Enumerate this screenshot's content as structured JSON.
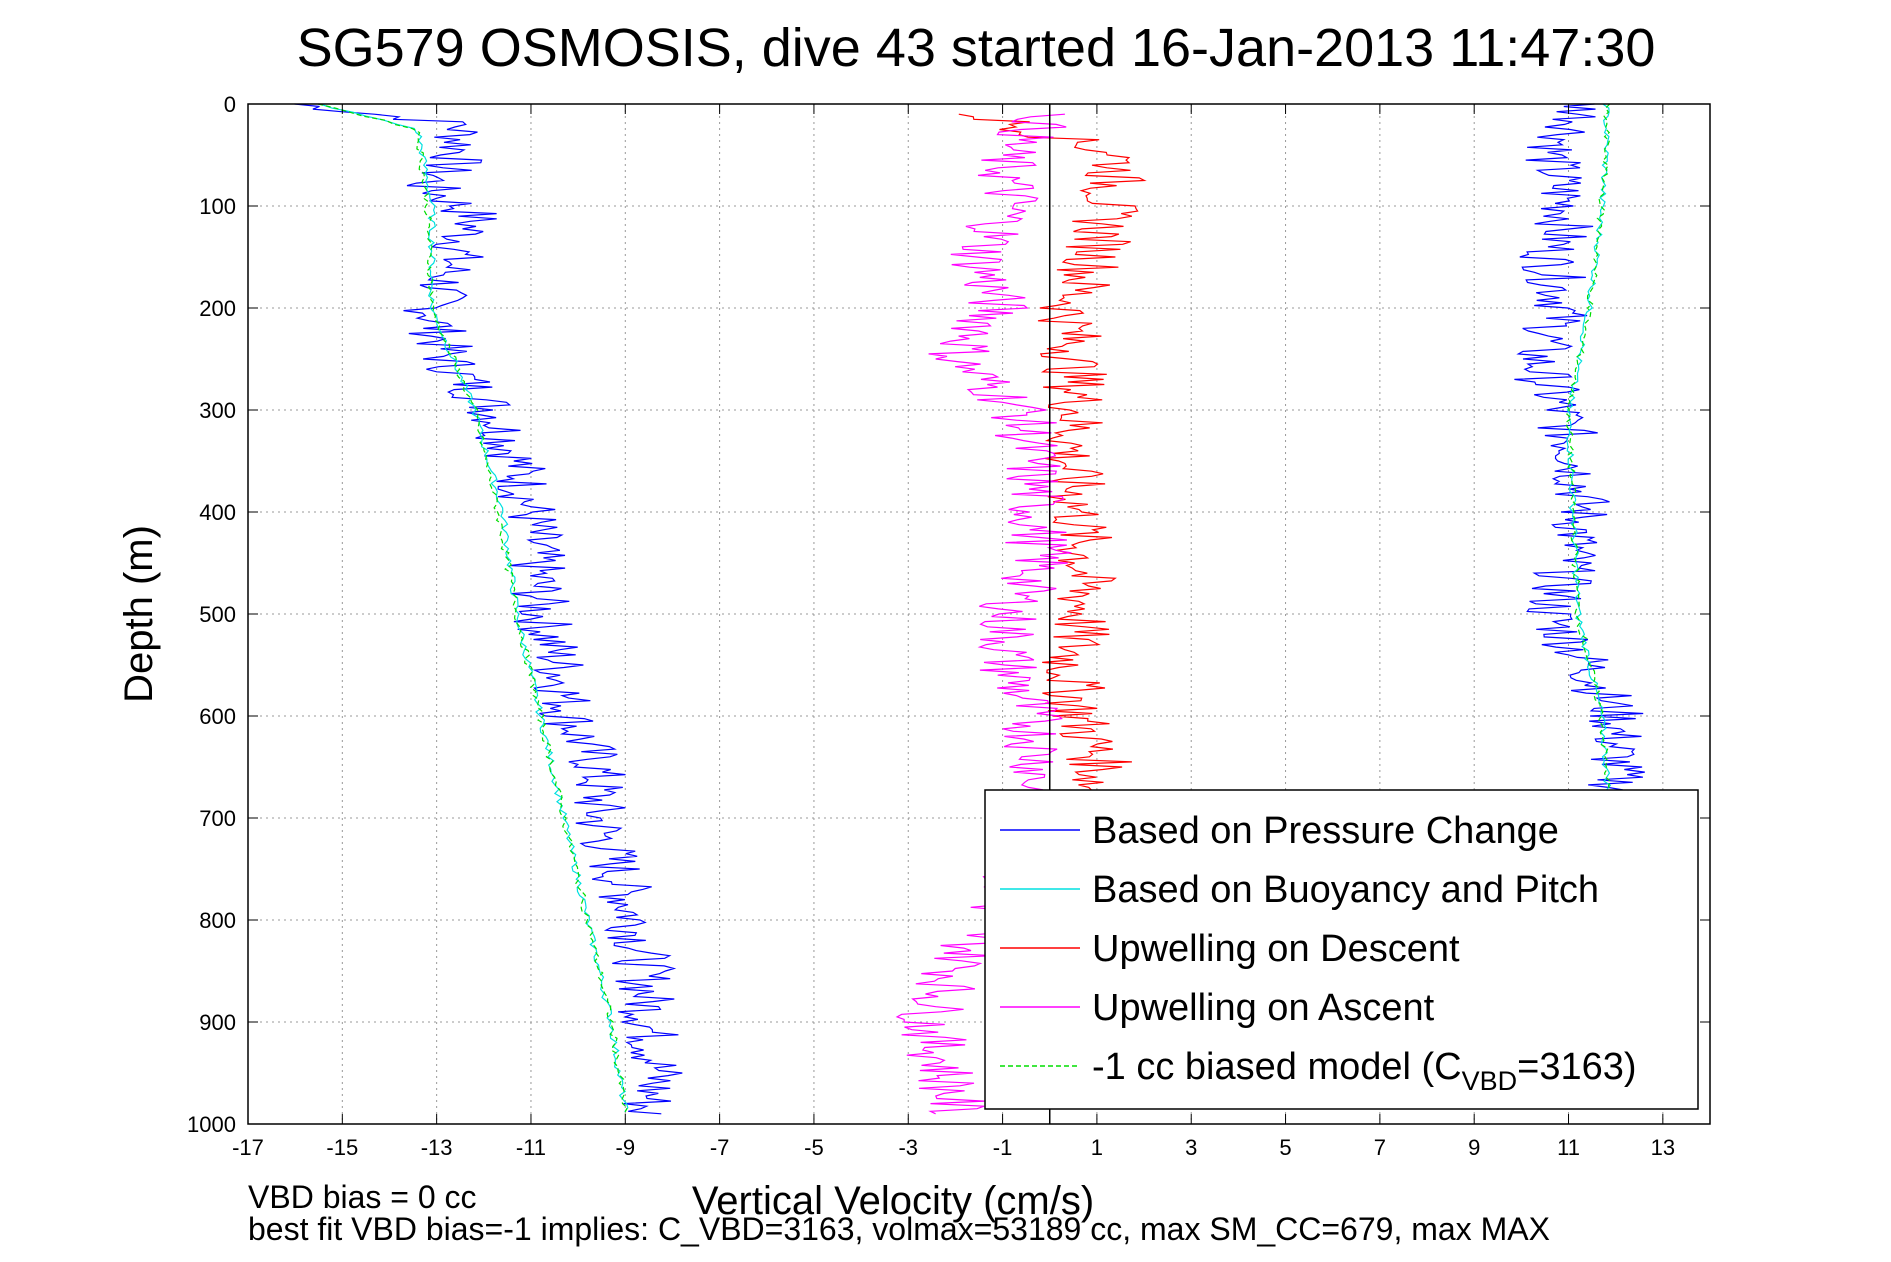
{
  "chart_data": {
    "type": "line",
    "title": "SG579 OSMOSIS, dive 43 started 16-Jan-2013 11:47:30",
    "xlabel": "Vertical Velocity (cm/s)",
    "ylabel": "Depth (m)",
    "xlim": [
      -17,
      14
    ],
    "ylim": [
      1000,
      0
    ],
    "y_reversed": true,
    "grid": true,
    "legend_position": "bottom-right",
    "xticks": [
      -17,
      -15,
      -13,
      -11,
      -9,
      -7,
      -5,
      -3,
      -1,
      1,
      3,
      5,
      7,
      9,
      11,
      13
    ],
    "yticks": [
      0,
      100,
      200,
      300,
      400,
      500,
      600,
      700,
      800,
      900,
      1000
    ],
    "vertical_reference_x": 0,
    "series": [
      {
        "id": "pressure_descent",
        "color": "#0000ff",
        "dash": "solid",
        "depth": [
          0,
          20,
          50,
          80,
          110,
          150,
          200,
          250,
          300,
          350,
          400,
          450,
          500,
          550,
          600,
          650,
          700,
          750,
          800,
          850,
          900,
          950,
          990
        ],
        "velocity": [
          -16,
          -12.5,
          -12.5,
          -13.2,
          -12.2,
          -12.6,
          -13.1,
          -12.8,
          -11.8,
          -11.3,
          -11.0,
          -10.9,
          -10.8,
          -10.4,
          -10.2,
          -9.6,
          -9.6,
          -9.2,
          -8.8,
          -8.6,
          -8.5,
          -8.3,
          -8.6
        ]
      },
      {
        "id": "pressure_ascent",
        "color": "#0000ff",
        "dash": "solid",
        "depth": [
          0,
          20,
          50,
          80,
          110,
          150,
          200,
          250,
          300,
          350,
          400,
          450,
          500,
          550,
          600,
          650,
          700
        ],
        "velocity": [
          11.3,
          11.2,
          10.6,
          10.8,
          11.0,
          10.6,
          10.9,
          10.3,
          10.8,
          11.2,
          11.3,
          11.0,
          10.6,
          11.4,
          12.0,
          12.0,
          12.1
        ]
      },
      {
        "id": "buoyancy_pitch_descent",
        "color": "#00e0e0",
        "dash": "solid",
        "depth": [
          0,
          25,
          100,
          200,
          300,
          400,
          500,
          600,
          700,
          800,
          900,
          990
        ],
        "velocity": [
          -15.5,
          -13.4,
          -13.1,
          -13.1,
          -12.2,
          -11.6,
          -11.3,
          -10.8,
          -10.3,
          -9.8,
          -9.3,
          -9.0
        ]
      },
      {
        "id": "buoyancy_pitch_ascent",
        "color": "#00e0e0",
        "dash": "solid",
        "depth": [
          0,
          50,
          150,
          210,
          300,
          400,
          500,
          600,
          700
        ],
        "velocity": [
          11.8,
          11.8,
          11.6,
          11.4,
          11.0,
          11.1,
          11.2,
          11.7,
          11.9
        ]
      },
      {
        "id": "upwelling_descent",
        "color": "#ff0000",
        "dash": "solid",
        "depth": [
          10,
          50,
          100,
          150,
          200,
          250,
          300,
          350,
          400,
          450,
          500,
          550,
          600,
          650,
          700
        ],
        "velocity": [
          -1.5,
          1.5,
          1.2,
          1.0,
          0.4,
          0.5,
          0.6,
          0.4,
          0.6,
          0.7,
          0.7,
          0.4,
          0.6,
          1.1,
          0.6
        ]
      },
      {
        "id": "upwelling_ascent",
        "color": "#ff00ff",
        "dash": "solid",
        "depth": [
          10,
          50,
          100,
          150,
          200,
          250,
          300,
          350,
          400,
          450,
          500,
          550,
          600,
          650,
          700,
          750,
          800,
          850,
          900,
          950,
          990
        ],
        "velocity": [
          0.0,
          -1.0,
          -0.8,
          -1.5,
          -1.1,
          -2.0,
          -0.6,
          -0.4,
          -0.3,
          -0.2,
          -0.9,
          -0.9,
          -0.4,
          -0.2,
          -0.6,
          -0.7,
          -1.3,
          -2.0,
          -2.6,
          -2.2,
          -2.0
        ]
      },
      {
        "id": "biased_model_descent",
        "color": "#00dd00",
        "dash": "dashed",
        "depth": [
          0,
          25,
          100,
          200,
          300,
          400,
          500,
          600,
          700,
          800,
          900,
          990
        ],
        "velocity": [
          -15.5,
          -13.4,
          -13.2,
          -13.1,
          -12.2,
          -11.7,
          -11.3,
          -10.8,
          -10.3,
          -9.8,
          -9.3,
          -9.0
        ]
      },
      {
        "id": "biased_model_ascent",
        "color": "#00dd00",
        "dash": "dashed",
        "depth": [
          0,
          50,
          150,
          210,
          300,
          400,
          500,
          600,
          700
        ],
        "velocity": [
          11.8,
          11.8,
          11.6,
          11.4,
          11.0,
          11.1,
          11.2,
          11.7,
          11.9
        ]
      }
    ],
    "legend": {
      "entries": [
        {
          "label": "Based on Pressure Change",
          "color": "#0000ff",
          "dash": "solid"
        },
        {
          "label": "Based on Buoyancy and Pitch",
          "color": "#00e0e0",
          "dash": "solid"
        },
        {
          "label": "Upwelling on Descent",
          "color": "#ff0000",
          "dash": "solid"
        },
        {
          "label": "Upwelling on Ascent",
          "color": "#ff00ff",
          "dash": "solid"
        },
        {
          "label_prefix": "-1 cc biased model (C",
          "label_sub": "VBD",
          "label_suffix": "=3163)",
          "color": "#00dd00",
          "dash": "dashed"
        }
      ]
    },
    "annotations": {
      "line1": "VBD bias = 0 cc",
      "line2": "best fit VBD bias=-1 implies: C_VBD=3163, volmax=53189 cc, max SM_CC=679, max MAX"
    }
  }
}
